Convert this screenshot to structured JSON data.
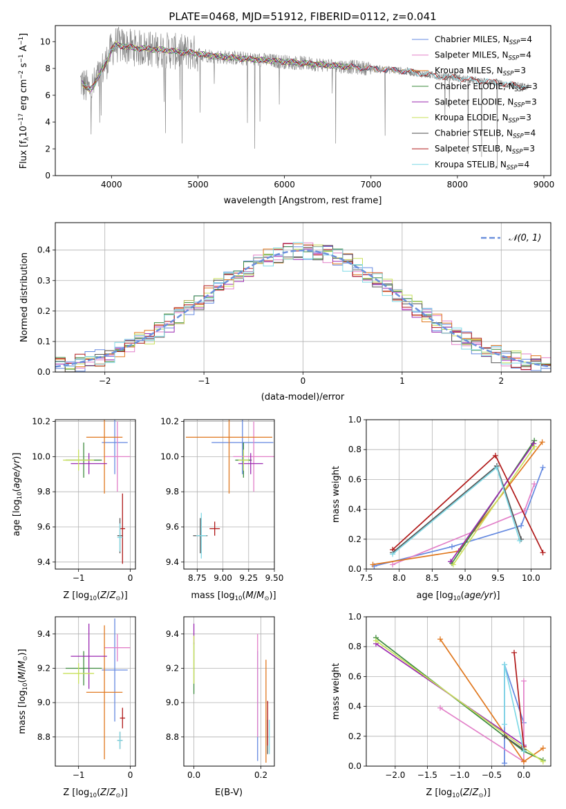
{
  "figure_title": "PLATE=0468, MJD=51912, FIBERID=0112, z=0.041",
  "colors": {
    "Chabrier MILES": "#6388e0",
    "Salpeter MILES": "#e27fc8",
    "Kroupa MILES": "#e0771d",
    "Chabrier ELODIE": "#3d8a3d",
    "Salpeter ELODIE": "#9a27b0",
    "Kroupa ELODIE": "#c8e05a",
    "Chabrier STELIB": "#555555",
    "Salpeter STELIB": "#b01818",
    "Kroupa STELIB": "#7fd9e6",
    "data": "#888888",
    "normal": "#6a8fdc"
  },
  "chart_data": [
    {
      "id": "spectrum",
      "type": "line",
      "xlabel": "wavelength [Angstrom, rest frame]",
      "ylabel": "Flux [f_λ10^-17 erg cm^-2 s^-1 A^-1]",
      "xlim": [
        3350,
        9080
      ],
      "ylim": [
        0,
        11.2
      ],
      "xticks": [
        4000,
        5000,
        6000,
        7000,
        8000,
        9000
      ],
      "yticks": [
        0,
        2,
        4,
        6,
        8,
        10
      ],
      "grid": false,
      "legend_position": "upper right",
      "continuum": {
        "x": [
          3650,
          3700,
          3750,
          3800,
          3850,
          3900,
          3950,
          4000,
          4050,
          4100,
          4200,
          4300,
          4400,
          4500,
          4600,
          4700,
          4800,
          4900,
          5000,
          5200,
          5400,
          5600,
          5800,
          6000,
          6200,
          6400,
          6600,
          6800,
          7000,
          7200,
          7400,
          7600,
          7800,
          8000,
          8200,
          8400,
          8600,
          8800
        ],
        "y": [
          7.0,
          6.6,
          6.4,
          6.8,
          7.4,
          8.0,
          8.6,
          9.4,
          9.8,
          9.7,
          9.6,
          9.5,
          9.5,
          9.4,
          9.4,
          9.3,
          9.2,
          9.2,
          9.1,
          8.9,
          8.8,
          8.7,
          8.6,
          8.5,
          8.4,
          8.3,
          8.2,
          8.1,
          8.0,
          7.9,
          7.8,
          7.6,
          7.4,
          7.3,
          7.1,
          7.0,
          6.8,
          6.6
        ]
      },
      "series": [
        {
          "name": "Chabrier MILES",
          "nssp": "4",
          "xmax": 7420
        },
        {
          "name": "Salpeter MILES",
          "nssp": "4",
          "xmax": 7420
        },
        {
          "name": "Kroupa MILES",
          "nssp": "3",
          "xmax": 7420
        },
        {
          "name": "Chabrier ELODIE",
          "nssp": "3",
          "xmax": 6800
        },
        {
          "name": "Salpeter ELODIE",
          "nssp": "3",
          "xmax": 6800
        },
        {
          "name": "Kroupa ELODIE",
          "nssp": "3",
          "xmax": 6800
        },
        {
          "name": "Chabrier STELIB",
          "nssp": "4",
          "xmax": 8800
        },
        {
          "name": "Salpeter STELIB",
          "nssp": "3",
          "xmax": 8800
        },
        {
          "name": "Kroupa STELIB",
          "nssp": "4",
          "xmax": 8800
        }
      ]
    },
    {
      "id": "residuals",
      "type": "line",
      "xlabel": "(data-model)/error",
      "ylabel": "Normed distribution",
      "xlim": [
        -2.5,
        2.5
      ],
      "ylim": [
        0,
        0.49
      ],
      "xticks": [
        -2,
        -1,
        0,
        1,
        2
      ],
      "yticks": [
        0.0,
        0.1,
        0.2,
        0.3,
        0.4
      ],
      "grid": true,
      "legend": "𝒩(0, 1)",
      "legend_position": "upper right",
      "bin_width": 0.1
    },
    {
      "id": "age_vs_Z",
      "type": "scatter",
      "xlabel": "Z [log10(Z/Z⊙)]",
      "ylabel": "age  [log10(age/yr)]",
      "xlim": [
        -1.45,
        0.1
      ],
      "ylim": [
        9.36,
        10.21
      ],
      "xticks": [
        -1,
        0
      ],
      "yticks": [
        9.4,
        9.6,
        9.8,
        10.0,
        10.2
      ],
      "grid": true,
      "points": [
        {
          "model": "Chabrier MILES",
          "x": -0.3,
          "xerr": 0.25,
          "y": 10.08,
          "yerr": 0.18
        },
        {
          "model": "Salpeter MILES",
          "x": -0.25,
          "xerr": 0.25,
          "y": 10.0,
          "yerr": 0.2
        },
        {
          "model": "Kroupa MILES",
          "x": -0.5,
          "xerr": 0.35,
          "y": 10.11,
          "yerr": 0.32
        },
        {
          "model": "Chabrier ELODIE",
          "x": -0.9,
          "xerr": 0.35,
          "y": 9.98,
          "yerr": 0.1
        },
        {
          "model": "Salpeter ELODIE",
          "x": -0.8,
          "xerr": 0.35,
          "y": 9.96,
          "yerr": 0.06
        },
        {
          "model": "Kroupa ELODIE",
          "x": -1.0,
          "xerr": 0.3,
          "y": 9.98,
          "yerr": 0.06
        },
        {
          "model": "Chabrier STELIB",
          "x": -0.2,
          "xerr": 0.05,
          "y": 9.55,
          "yerr": 0.1
        },
        {
          "model": "Salpeter STELIB",
          "x": -0.15,
          "xerr": 0.05,
          "y": 9.59,
          "yerr": 0.2
        },
        {
          "model": "Kroupa STELIB",
          "x": -0.2,
          "xerr": 0.05,
          "y": 9.54,
          "yerr": 0.08
        }
      ]
    },
    {
      "id": "age_vs_mass",
      "type": "scatter",
      "xlabel": "mass [log10(M/M⊙)]",
      "ylabel": "",
      "xlim": [
        8.62,
        9.5
      ],
      "ylim": [
        9.36,
        10.21
      ],
      "xticks": [
        8.75,
        9.0,
        9.25,
        9.5
      ],
      "xticklabels": [
        "8.75",
        "9.00",
        "9.25",
        "9.50"
      ],
      "yticks": [
        9.4,
        9.6,
        9.8,
        10.0,
        10.2
      ],
      "grid": true,
      "points": [
        {
          "model": "Chabrier MILES",
          "x": 9.19,
          "xerr": 0.3,
          "y": 10.08,
          "yerr": 0.18
        },
        {
          "model": "Salpeter MILES",
          "x": 9.3,
          "xerr": 0.2,
          "y": 10.0,
          "yerr": 0.2
        },
        {
          "model": "Kroupa MILES",
          "x": 9.06,
          "xerr": 0.42,
          "y": 10.11,
          "yerr": 0.32
        },
        {
          "model": "Chabrier ELODIE",
          "x": 9.2,
          "xerr": 0.08,
          "y": 9.98,
          "yerr": 0.1
        },
        {
          "model": "Salpeter ELODIE",
          "x": 9.27,
          "xerr": 0.12,
          "y": 9.96,
          "yerr": 0.06
        },
        {
          "model": "Kroupa ELODIE",
          "x": 9.2,
          "xerr": 0.05,
          "y": 9.98,
          "yerr": 0.06
        },
        {
          "model": "Chabrier STELIB",
          "x": 8.78,
          "xerr": 0.07,
          "y": 9.55,
          "yerr": 0.1
        },
        {
          "model": "Salpeter STELIB",
          "x": 8.92,
          "xerr": 0.05,
          "y": 9.59,
          "yerr": 0.04
        },
        {
          "model": "Kroupa STELIB",
          "x": 8.79,
          "xerr": 0.05,
          "y": 9.55,
          "yerr": 0.13
        }
      ]
    },
    {
      "id": "weight_vs_age",
      "type": "line",
      "xlabel": "age  [log10(age/yr)]",
      "ylabel": "mass weight",
      "xlim": [
        7.5,
        10.3
      ],
      "ylim": [
        0,
        1.0
      ],
      "xticks": [
        7.5,
        8.0,
        8.5,
        9.0,
        9.5,
        10.0
      ],
      "yticks": [
        0.0,
        0.2,
        0.4,
        0.6,
        0.8,
        1.0
      ],
      "grid": true,
      "series": [
        {
          "name": "Chabrier MILES",
          "x": [
            7.62,
            8.8,
            9.85,
            10.18
          ],
          "y": [
            0.02,
            0.15,
            0.29,
            0.68
          ]
        },
        {
          "name": "Salpeter MILES",
          "x": [
            7.9,
            9.9,
            10.05
          ],
          "y": [
            0.03,
            0.39,
            0.57
          ]
        },
        {
          "name": "Kroupa MILES",
          "x": [
            7.6,
            8.9,
            10.17
          ],
          "y": [
            0.03,
            0.12,
            0.85
          ]
        },
        {
          "name": "Chabrier ELODIE",
          "x": [
            8.8,
            10.05
          ],
          "y": [
            0.04,
            0.86
          ]
        },
        {
          "name": "Salpeter ELODIE",
          "x": [
            8.78,
            10.04
          ],
          "y": [
            0.05,
            0.84
          ]
        },
        {
          "name": "Kroupa ELODIE",
          "x": [
            8.82,
            10.05
          ],
          "y": [
            0.03,
            0.82
          ]
        },
        {
          "name": "Chabrier STELIB",
          "x": [
            7.9,
            9.48,
            9.85
          ],
          "y": [
            0.11,
            0.69,
            0.2
          ]
        },
        {
          "name": "Salpeter STELIB",
          "x": [
            7.9,
            9.46,
            10.18
          ],
          "y": [
            0.13,
            0.76,
            0.11
          ]
        },
        {
          "name": "Kroupa STELIB",
          "x": [
            7.9,
            9.48,
            9.83
          ],
          "y": [
            0.1,
            0.68,
            0.19
          ]
        }
      ]
    },
    {
      "id": "mass_vs_Z",
      "type": "scatter",
      "xlabel": "Z [log10(Z/Z⊙)]",
      "ylabel": "mass [log10(M/M⊙)]",
      "xlim": [
        -1.45,
        0.1
      ],
      "ylim": [
        8.63,
        9.5
      ],
      "xticks": [
        -1,
        0
      ],
      "yticks": [
        8.8,
        9.0,
        9.2,
        9.4
      ],
      "grid": true,
      "points": [
        {
          "model": "Chabrier MILES",
          "x": -0.3,
          "xerr": 0.25,
          "y": 9.19,
          "yerr": 0.3
        },
        {
          "model": "Salpeter MILES",
          "x": -0.25,
          "xerr": 0.25,
          "y": 9.32,
          "yerr": 0.08
        },
        {
          "model": "Kroupa MILES",
          "x": -0.5,
          "xerr": 0.35,
          "y": 9.06,
          "yerr": 0.39
        },
        {
          "model": "Chabrier ELODIE",
          "x": -0.9,
          "xerr": 0.35,
          "y": 9.2,
          "yerr": 0.1
        },
        {
          "model": "Salpeter ELODIE",
          "x": -0.8,
          "xerr": 0.35,
          "y": 9.27,
          "yerr": 0.19
        },
        {
          "model": "Kroupa ELODIE",
          "x": -1.0,
          "xerr": 0.3,
          "y": 9.17,
          "yerr": 0.06
        },
        {
          "model": "Chabrier STELIB",
          "x": -0.2,
          "xerr": 0.05,
          "y": 8.78,
          "yerr": 0.05
        },
        {
          "model": "Salpeter STELIB",
          "x": -0.15,
          "xerr": 0.05,
          "y": 8.91,
          "yerr": 0.06
        },
        {
          "model": "Kroupa STELIB",
          "x": -0.2,
          "xerr": 0.05,
          "y": 8.78,
          "yerr": 0.05
        }
      ]
    },
    {
      "id": "mass_vs_ebv",
      "type": "scatter",
      "xlabel": "E(B-V)",
      "ylabel": "",
      "xlim": [
        -0.03,
        0.24
      ],
      "ylim": [
        8.63,
        9.5
      ],
      "xticks": [
        0.0,
        0.2
      ],
      "xticklabels": [
        "0.0",
        "0.2"
      ],
      "yticks": [
        8.8,
        9.0,
        9.2,
        9.4
      ],
      "grid": true,
      "points": [
        {
          "model": "Chabrier MILES",
          "x": 0.19,
          "y": 8.98,
          "yerr": 0.32
        },
        {
          "model": "Salpeter MILES",
          "x": 0.19,
          "y": 9.1,
          "yerr": 0.3
        },
        {
          "model": "Kroupa MILES",
          "x": 0.215,
          "y": 8.95,
          "yerr": 0.3
        },
        {
          "model": "Chabrier ELODIE",
          "x": 0.0,
          "y": 9.2,
          "yerr": 0.15
        },
        {
          "model": "Salpeter ELODIE",
          "x": 0.0,
          "y": 9.4,
          "yerr": 0.06
        },
        {
          "model": "Kroupa ELODIE",
          "x": 0.0,
          "y": 9.25,
          "yerr": 0.14
        },
        {
          "model": "Chabrier STELIB",
          "x": 0.22,
          "y": 8.8,
          "yerr": 0.1
        },
        {
          "model": "Salpeter STELIB",
          "x": 0.22,
          "y": 8.88,
          "yerr": 0.13
        },
        {
          "model": "Kroupa STELIB",
          "x": 0.225,
          "y": 8.8,
          "yerr": 0.1
        }
      ]
    },
    {
      "id": "weight_vs_Z",
      "type": "line",
      "xlabel": "Z [log10(Z/Z⊙)]",
      "ylabel": "mass weight",
      "xlim": [
        -2.45,
        0.42
      ],
      "ylim": [
        0,
        1.0
      ],
      "xticks": [
        -2.0,
        -1.5,
        -1.0,
        -0.5,
        0.0
      ],
      "yticks": [
        0.0,
        0.2,
        0.4,
        0.6,
        0.8,
        1.0
      ],
      "grid": true,
      "series": [
        {
          "name": "Chabrier MILES",
          "x": [
            -0.3,
            -0.3,
            0.0
          ],
          "y": [
            0.02,
            0.68,
            0.29
          ]
        },
        {
          "name": "Salpeter MILES",
          "x": [
            -1.3,
            0.0,
            0.0
          ],
          "y": [
            0.39,
            0.03,
            0.57
          ]
        },
        {
          "name": "Kroupa MILES",
          "x": [
            -1.3,
            0.0,
            0.3
          ],
          "y": [
            0.85,
            0.03,
            0.12
          ]
        },
        {
          "name": "Chabrier ELODIE",
          "x": [
            -2.3,
            0.0,
            0.3
          ],
          "y": [
            0.86,
            0.1,
            0.04
          ]
        },
        {
          "name": "Salpeter ELODIE",
          "x": [
            -2.3,
            0.0
          ],
          "y": [
            0.82,
            0.14
          ]
        },
        {
          "name": "Kroupa ELODIE",
          "x": [
            -2.3,
            0.3
          ],
          "y": [
            0.84,
            0.03
          ]
        },
        {
          "name": "Chabrier STELIB",
          "x": [
            -0.3,
            0.0
          ],
          "y": [
            0.2,
            0.11
          ]
        },
        {
          "name": "Salpeter STELIB",
          "x": [
            -0.15,
            0.0
          ],
          "y": [
            0.76,
            0.13
          ]
        },
        {
          "name": "Kroupa STELIB",
          "x": [
            -0.3,
            -0.3,
            0.0
          ],
          "y": [
            0.28,
            0.68,
            0.1
          ]
        }
      ]
    }
  ]
}
